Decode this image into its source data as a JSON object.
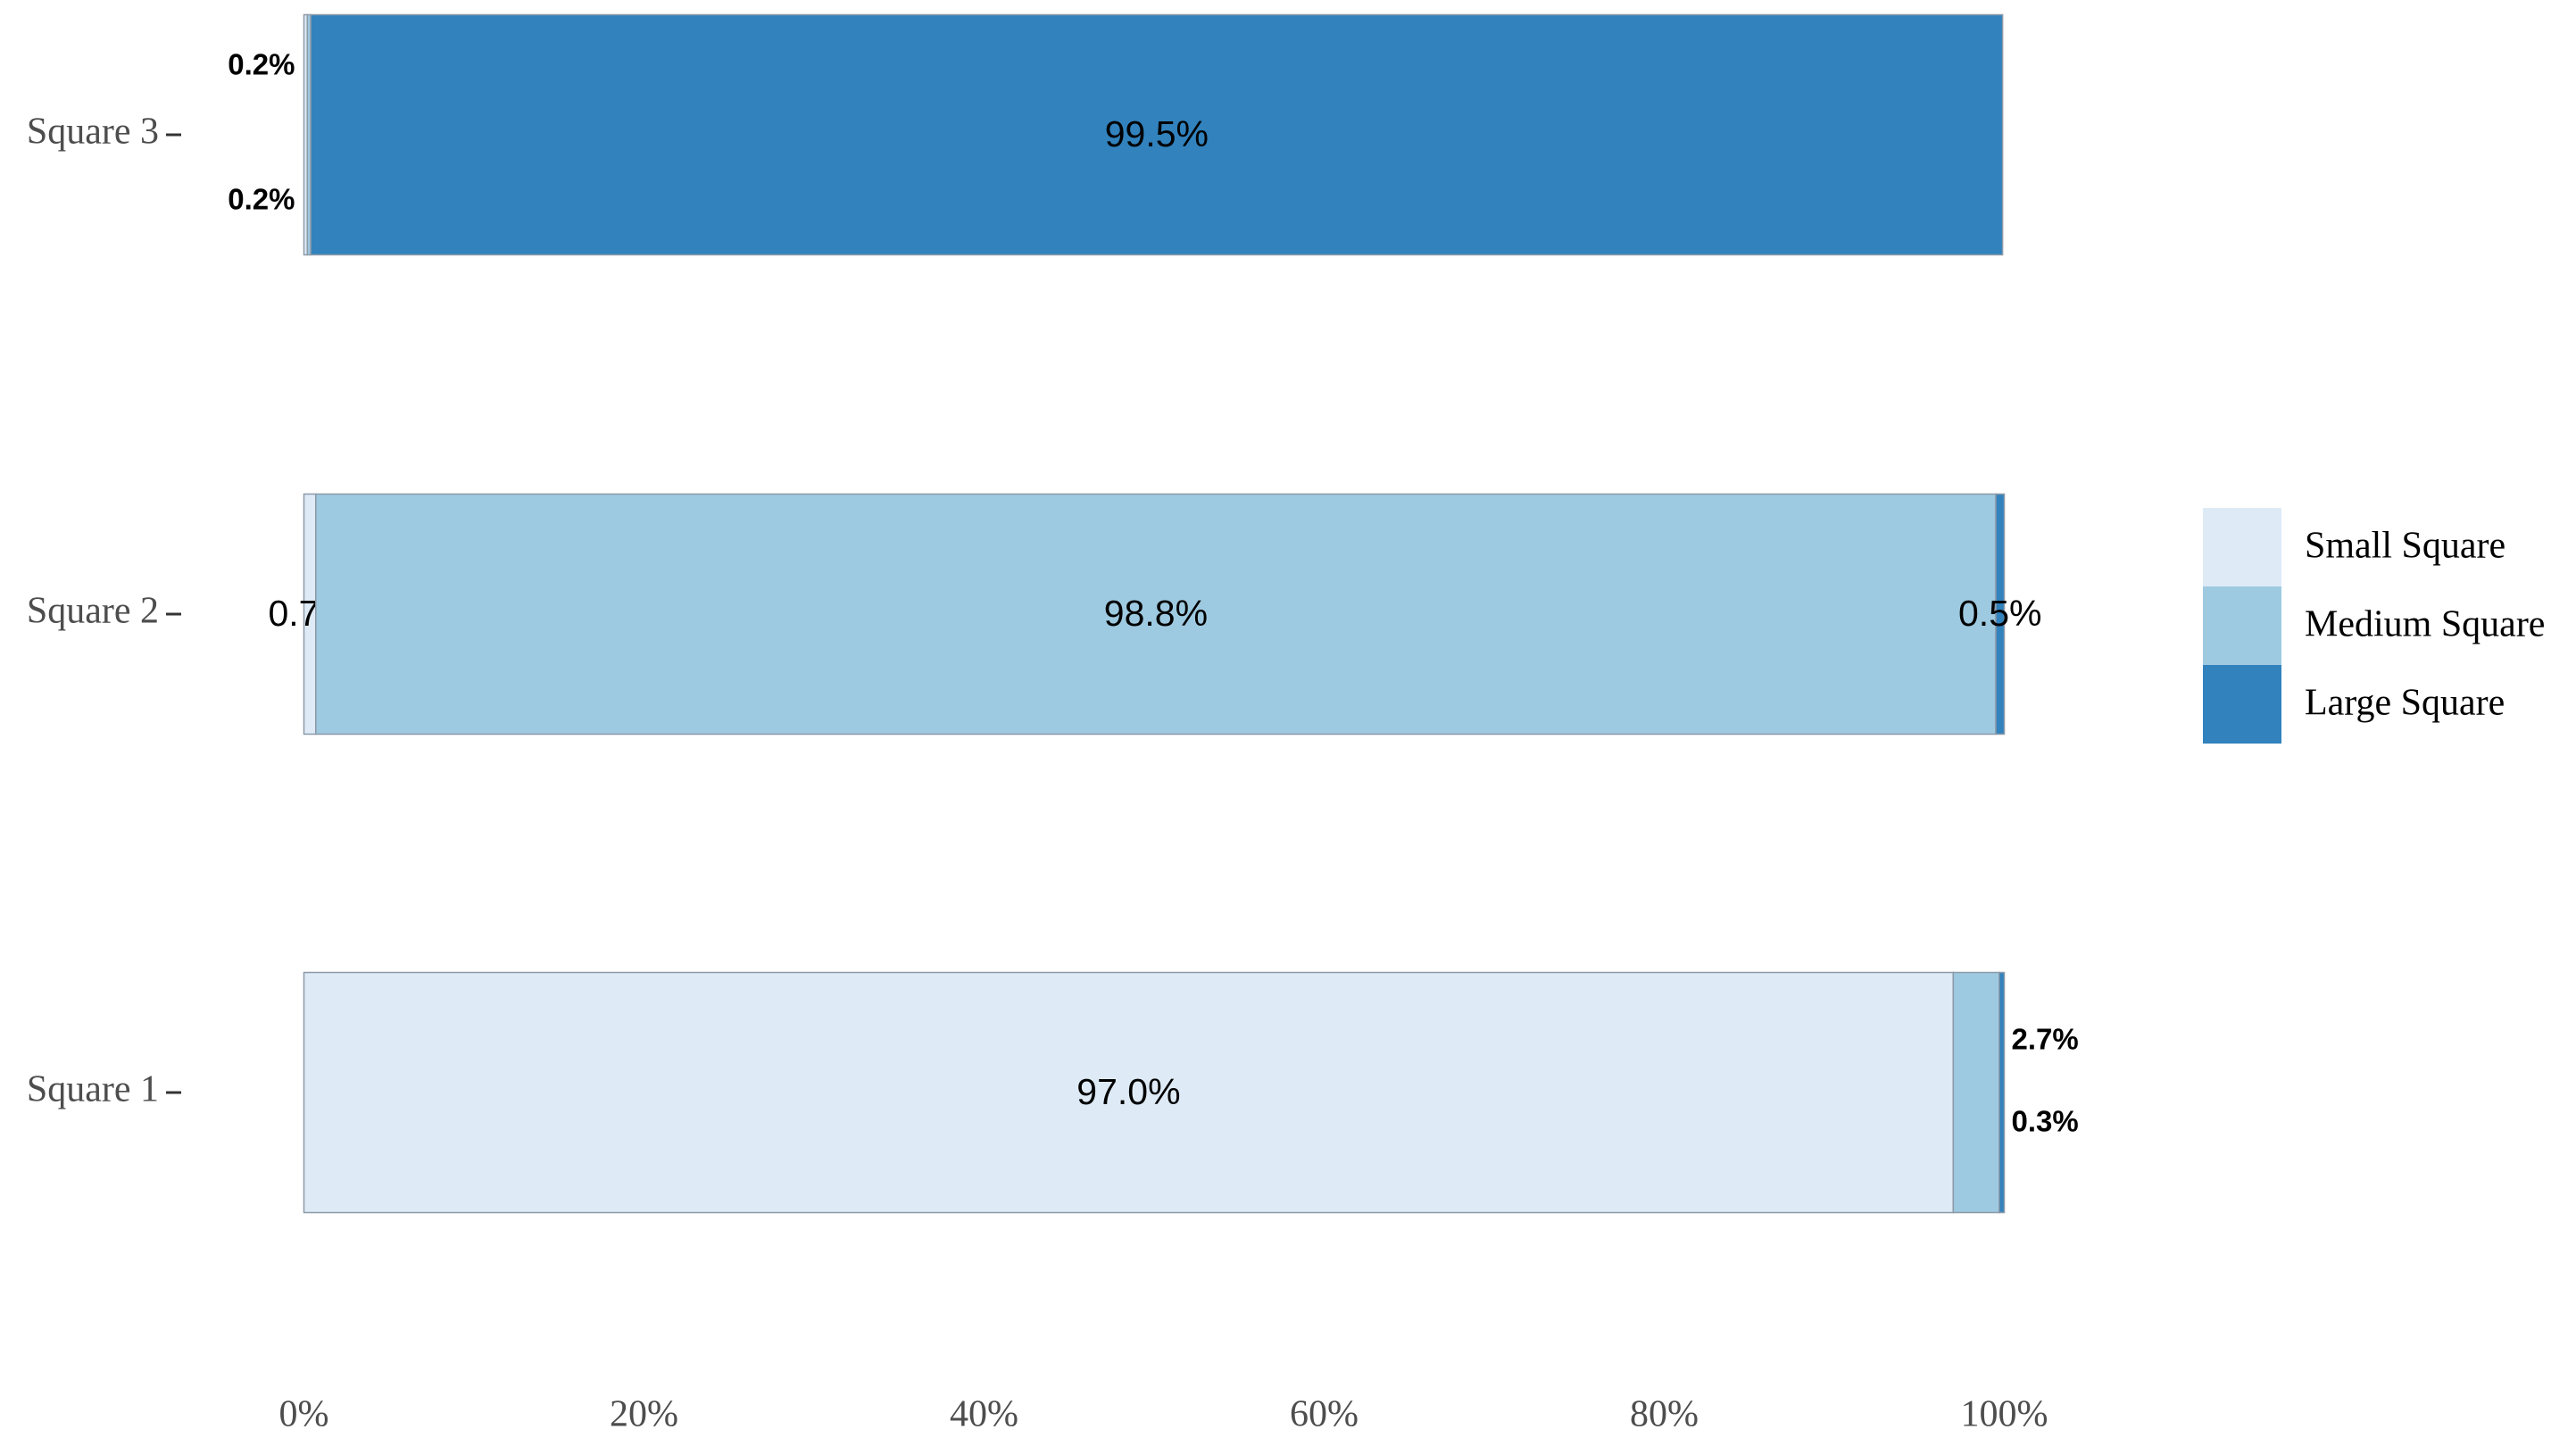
{
  "chart_data": {
    "type": "stacked-barh",
    "categories": [
      "Square 1",
      "Square 2",
      "Square 3"
    ],
    "series": [
      {
        "name": "Small Square",
        "color": "#deebf7",
        "values": [
          97.0,
          0.7,
          0.2
        ],
        "value_labels": [
          "97.0%",
          "0.7%",
          "0.2%"
        ]
      },
      {
        "name": "Medium Square",
        "color": "#9ecae1",
        "values": [
          2.7,
          98.8,
          0.2
        ],
        "value_labels": [
          "2.7%",
          "98.8%",
          "0.2%"
        ]
      },
      {
        "name": "Large Square",
        "color": "#3182bd",
        "values": [
          0.3,
          0.5,
          99.5
        ],
        "value_labels": [
          "0.3%",
          "0.5%",
          "99.5%"
        ]
      }
    ],
    "xlim": [
      0,
      100
    ],
    "xticks": [
      {
        "value": 0,
        "label": "0%"
      },
      {
        "value": 20,
        "label": "20%"
      },
      {
        "value": 40,
        "label": "40%"
      },
      {
        "value": 60,
        "label": "60%"
      },
      {
        "value": 80,
        "label": "80%"
      },
      {
        "value": 100,
        "label": "100%"
      }
    ]
  }
}
